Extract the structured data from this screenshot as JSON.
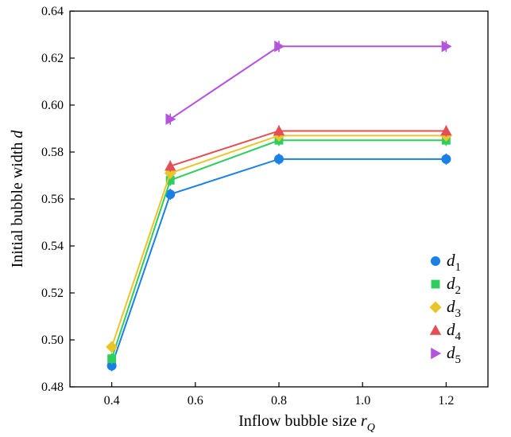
{
  "chart_data": {
    "type": "line",
    "xlabel": "Inflow bubble size",
    "xlabel_symbol": "r",
    "xlabel_sub": "Q",
    "ylabel": "Initial bubble width",
    "ylabel_symbol": "d",
    "xlim": [
      0.3,
      1.3
    ],
    "ylim": [
      0.48,
      0.64
    ],
    "xticks": [
      0.4,
      0.6,
      0.8,
      1.0,
      1.2
    ],
    "xtick_labels": [
      "0.4",
      "0.6",
      "0.8",
      "1.0",
      "1.2"
    ],
    "yticks": [
      0.48,
      0.5,
      0.52,
      0.54,
      0.56,
      0.58,
      0.6,
      0.62,
      0.64
    ],
    "ytick_labels": [
      "0.48",
      "0.50",
      "0.52",
      "0.54",
      "0.56",
      "0.58",
      "0.60",
      "0.62",
      "0.64"
    ],
    "grid": false,
    "legend_position": "bottom-right",
    "series": [
      {
        "name": "d",
        "sub": "1",
        "marker": "circle",
        "color": "#1a80e6",
        "x": [
          0.4,
          0.54,
          0.8,
          1.2
        ],
        "y": [
          0.489,
          0.562,
          0.577,
          0.577
        ]
      },
      {
        "name": "d",
        "sub": "2",
        "marker": "square",
        "color": "#2dce5d",
        "x": [
          0.4,
          0.54,
          0.8,
          1.2
        ],
        "y": [
          0.492,
          0.568,
          0.585,
          0.585
        ]
      },
      {
        "name": "d",
        "sub": "3",
        "marker": "diamond",
        "color": "#e8c62a",
        "x": [
          0.4,
          0.54,
          0.8,
          1.2
        ],
        "y": [
          0.497,
          0.571,
          0.587,
          0.587
        ]
      },
      {
        "name": "d",
        "sub": "4",
        "marker": "triangle-up",
        "color": "#e34f55",
        "x": [
          0.54,
          0.8,
          1.2
        ],
        "y": [
          0.574,
          0.589,
          0.589
        ]
      },
      {
        "name": "d",
        "sub": "5",
        "marker": "triangle-right",
        "color": "#b454dc",
        "x": [
          0.54,
          0.8,
          1.2
        ],
        "y": [
          0.594,
          0.625,
          0.625
        ]
      }
    ]
  }
}
